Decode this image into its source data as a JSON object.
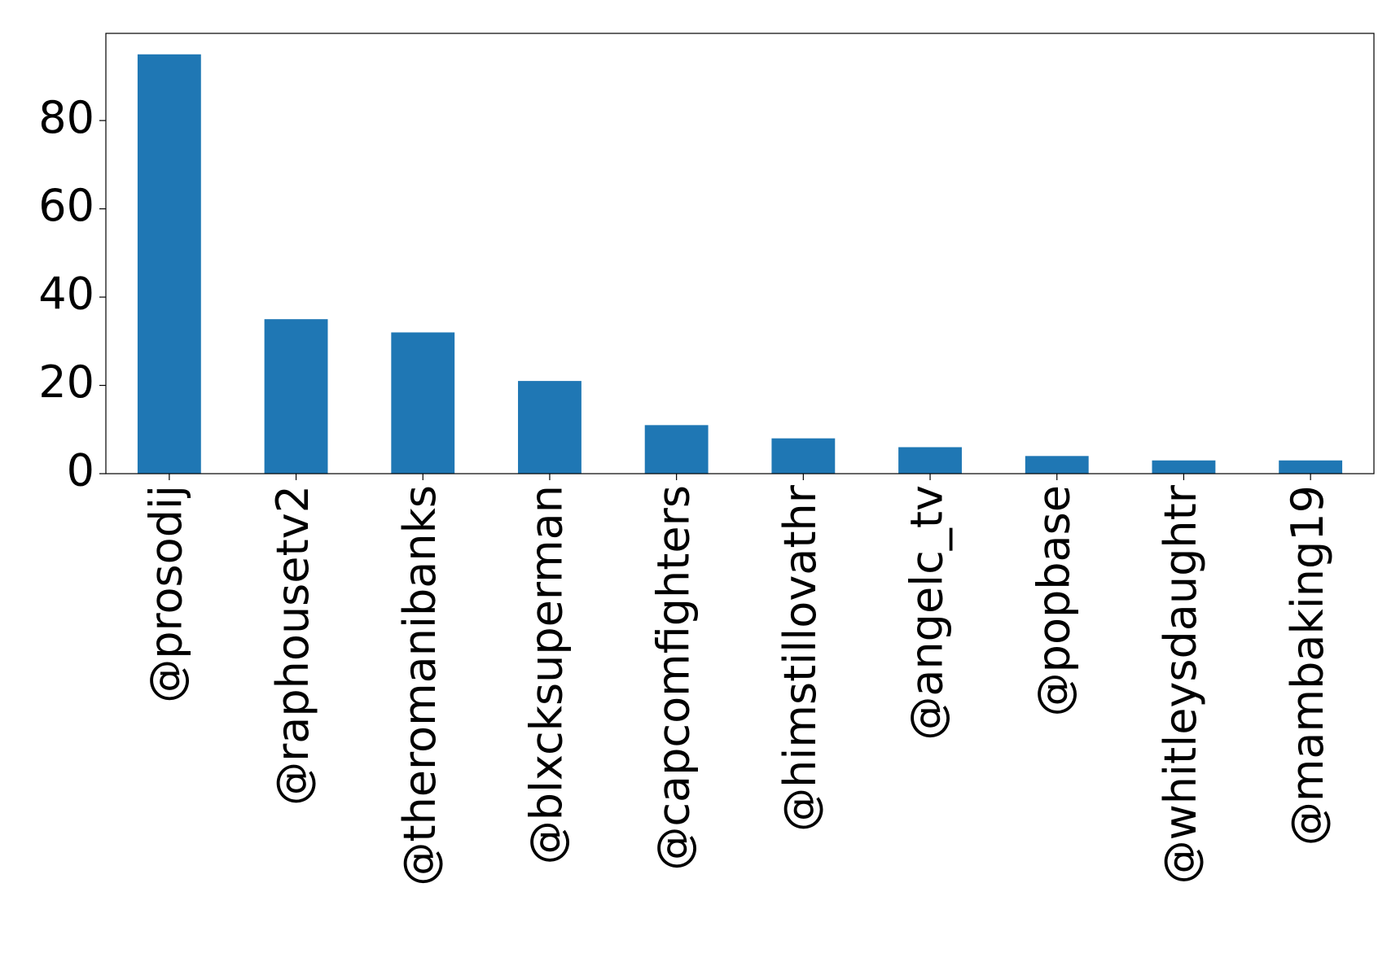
{
  "chart_data": {
    "type": "bar",
    "categories": [
      "@prosodij",
      "@raphousetv2",
      "@theromanibanks",
      "@blxcksuperman",
      "@capcomfighters",
      "@himstillovathr",
      "@angelc_tv",
      "@popbase",
      "@whitleysdaughtr",
      "@mambaking19"
    ],
    "values": [
      95,
      35,
      32,
      21,
      11,
      8,
      6,
      4,
      3,
      3
    ],
    "color": "#1f77b4",
    "ylim": [
      0,
      99.75
    ],
    "yticks": [
      0,
      20,
      40,
      60,
      80
    ],
    "grid": false
  }
}
